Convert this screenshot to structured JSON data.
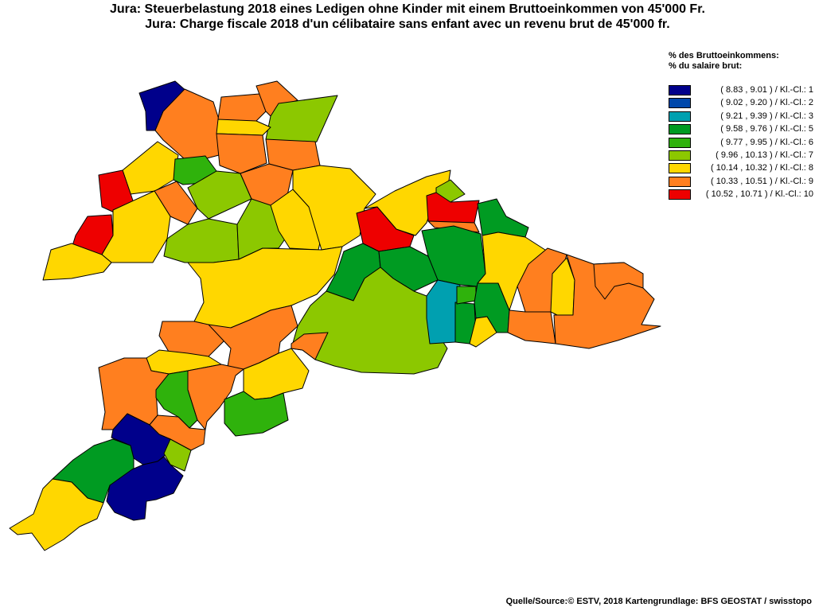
{
  "title_de": "Jura: Steuerbelastung 2018 eines Ledigen ohne Kinder mit einem Bruttoeinkommen von 45'000 Fr.",
  "title_fr": "Jura: Charge fiscale 2018 d'un célibataire sans enfant avec un revenu brut de 45'000 fr.",
  "legend": {
    "heading_de": "% des Bruttoeinkommens:",
    "heading_fr": "% du salaire brut:",
    "classes": [
      {
        "label": "( 8.83 , 9.01 ) / Kl.-Cl.: 1",
        "color": "#00008b"
      },
      {
        "label": "( 9.02 , 9.20 ) / Kl.-Cl.: 2",
        "color": "#0047ab"
      },
      {
        "label": "( 9.21 , 9.39 ) / Kl.-Cl.: 3",
        "color": "#00a0b0"
      },
      {
        "label": "( 9.58 , 9.76 ) / Kl.-Cl.: 5",
        "color": "#009b22"
      },
      {
        "label": "( 9.77 , 9.95 ) / Kl.-Cl.: 6",
        "color": "#2fb20c"
      },
      {
        "label": "( 9.96 , 10.13 ) / Kl.-Cl.: 7",
        "color": "#8cc800"
      },
      {
        "label": "( 10.14 , 10.32 ) / Kl.-Cl.: 8",
        "color": "#ffd700"
      },
      {
        "label": "( 10.33 , 10.51 ) / Kl.-Cl.: 9",
        "color": "#ff7f1f"
      },
      {
        "label": "( 10.52 , 10.71 ) / Kl.-Cl.: 10",
        "color": "#ee0000"
      }
    ]
  },
  "source": "Quelle/Source:© ESTV, 2018 Kartengrundlage: BFS GEOSTAT / swisstopo"
}
